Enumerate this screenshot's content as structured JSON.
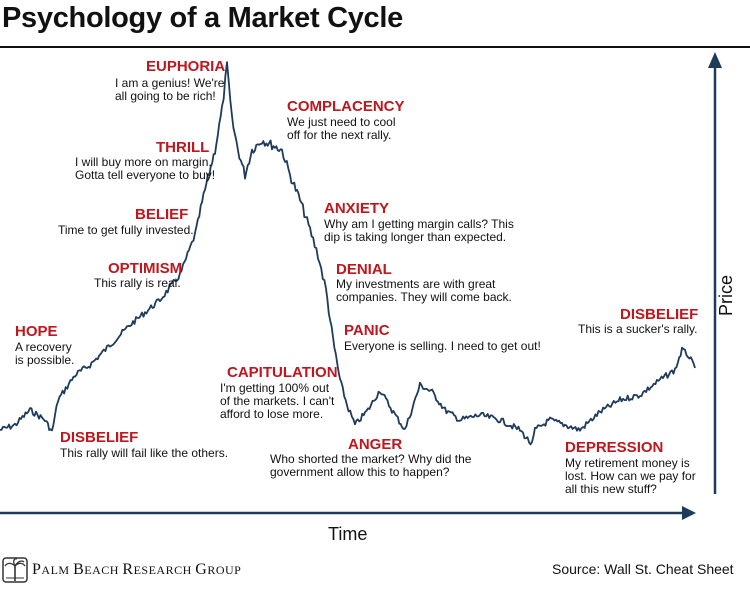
{
  "title": "Psychology of a Market Cycle",
  "axes": {
    "x_label": "Time",
    "y_label": "Price"
  },
  "phases": [
    {
      "id": "hope",
      "name": "HOPE",
      "text": "A recovery\nis possible."
    },
    {
      "id": "disbelief-1",
      "name": "DISBELIEF",
      "text": "This rally will fail like the others."
    },
    {
      "id": "optimism",
      "name": "OPTIMISM",
      "text": "This rally is real."
    },
    {
      "id": "belief",
      "name": "BELIEF",
      "text": "Time to get fully invested."
    },
    {
      "id": "thrill",
      "name": "THRILL",
      "text": "I will buy more on margin.\nGotta tell everyone to buy!"
    },
    {
      "id": "euphoria",
      "name": "EUPHORIA",
      "text": "I am a genius! We're\nall going to be rich!"
    },
    {
      "id": "complacency",
      "name": "COMPLACENCY",
      "text": "We just need to cool\noff for the next rally."
    },
    {
      "id": "anxiety",
      "name": "ANXIETY",
      "text": "Why am I getting margin calls? This\ndip is taking longer than expected."
    },
    {
      "id": "denial",
      "name": "DENIAL",
      "text": "My investments are with great\ncompanies. They will come back."
    },
    {
      "id": "panic",
      "name": "PANIC",
      "text": "Everyone is selling. I need to get out!"
    },
    {
      "id": "capitulation",
      "name": "CAPITULATION",
      "text": "I'm getting 100% out\nof the markets. I can't\nafford to lose more."
    },
    {
      "id": "anger",
      "name": "ANGER",
      "text": "Who shorted the market? Why did the\ngovernment allow this to happen?"
    },
    {
      "id": "depression",
      "name": "DEPRESSION",
      "text": "My retirement money is\nlost. How can we pay for\nall this new stuff?"
    },
    {
      "id": "disbelief-2",
      "name": "DISBELIEF",
      "text": "This is a sucker's rally."
    }
  ],
  "footer": {
    "brand_initial_1": "P",
    "brand_rest_1": "ALM ",
    "brand_initial_2": "B",
    "brand_rest_2": "EACH ",
    "brand_initial_3": "R",
    "brand_rest_3": "ESEARCH ",
    "brand_initial_4": "G",
    "brand_rest_4": "ROUP",
    "source": "Source: Wall St. Cheat Sheet"
  },
  "colors": {
    "line": "#1f3b5c",
    "phase": "#c0161d",
    "axis": "#1f3b5c",
    "text": "#111111"
  }
}
